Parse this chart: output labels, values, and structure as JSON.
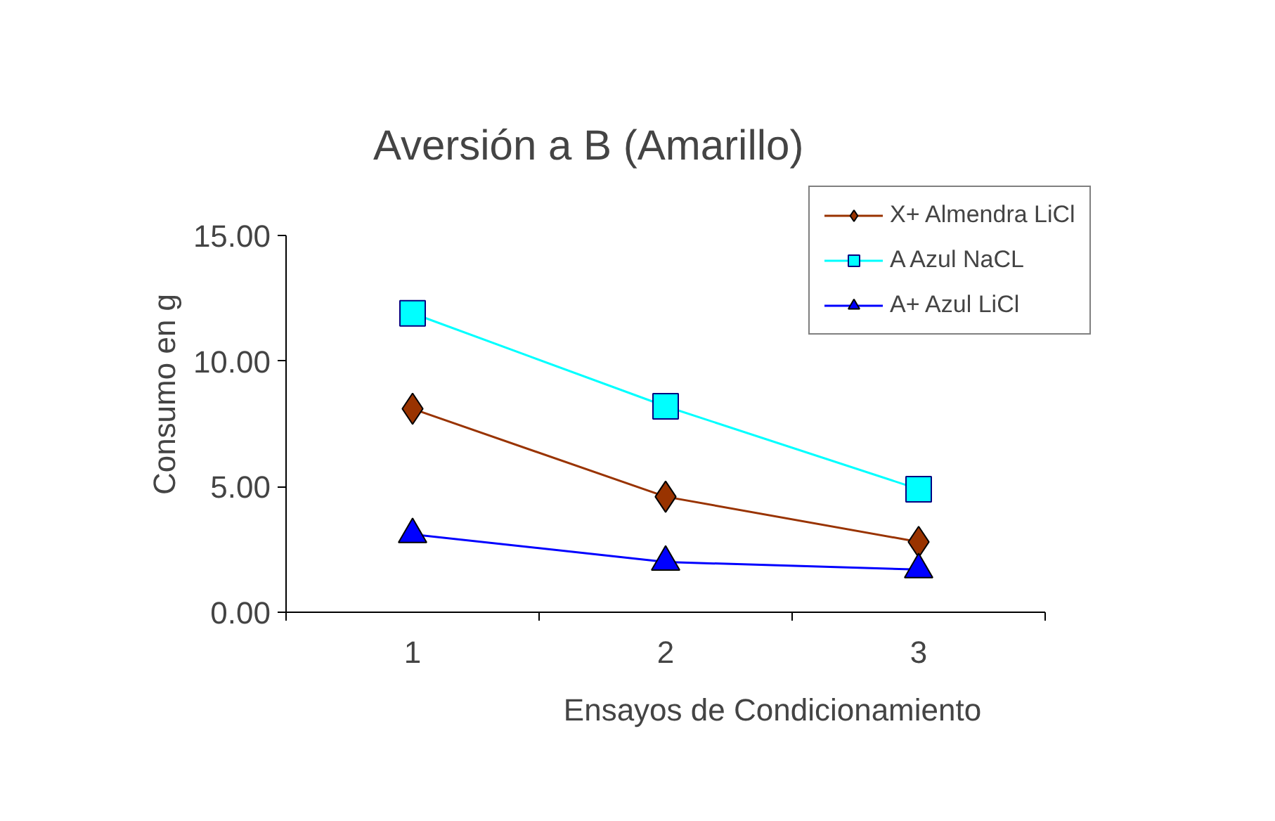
{
  "chart_data": {
    "type": "line",
    "title": "Aversión a B (Amarillo)",
    "xlabel": "Ensayos de Condicionamiento",
    "ylabel": "Consumo en g",
    "categories": [
      "1",
      "2",
      "3"
    ],
    "series": [
      {
        "name": "X+ Almendra LiCl",
        "color": "#993300",
        "marker": "diamond",
        "values": [
          8.1,
          4.6,
          2.8
        ]
      },
      {
        "name": "A Azul NaCL",
        "color": "#00ffff",
        "marker": "square",
        "values": [
          11.9,
          8.2,
          4.9
        ]
      },
      {
        "name": "A+ Azul LiCl",
        "color": "#0000ff",
        "marker": "triangle",
        "values": [
          3.1,
          2.0,
          1.7
        ]
      }
    ],
    "ylim": [
      0,
      15
    ],
    "yticks": [
      {
        "value": 0,
        "label": "0.00"
      },
      {
        "value": 5,
        "label": "5.00"
      },
      {
        "value": 10,
        "label": "10.00"
      },
      {
        "value": 15,
        "label": "15.00"
      }
    ],
    "grid": false,
    "legend": "top right"
  }
}
